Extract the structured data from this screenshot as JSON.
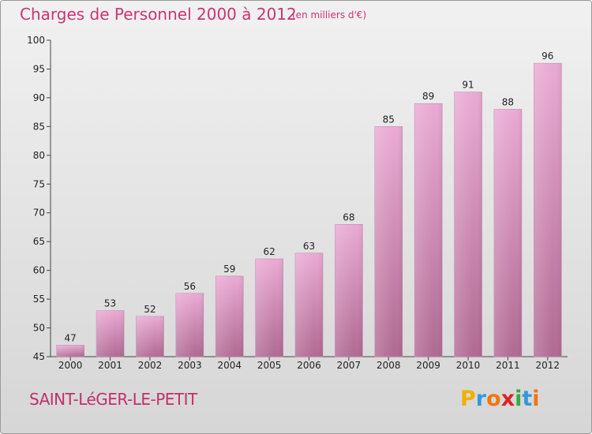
{
  "header": {
    "title": "Charges de Personnel 2000 à 2012",
    "unit": "(en milliers d'€)"
  },
  "footer": {
    "commune": "SAINT-LéGER-LE-PETIT",
    "brand_letters": [
      "P",
      "r",
      "o",
      "x",
      "i",
      "t",
      "i"
    ]
  },
  "colors": {
    "title": "#cc3377",
    "bar_light": "#eaaad4",
    "bar_dark": "#b06a92",
    "brand": [
      "#f0b000",
      "#3399dd",
      "#ee7711",
      "#dd2222",
      "#33aa44",
      "#3399dd",
      "#ee7711"
    ]
  },
  "chart_data": {
    "type": "bar",
    "categories": [
      "2000",
      "2001",
      "2002",
      "2003",
      "2004",
      "2005",
      "2006",
      "2007",
      "2008",
      "2009",
      "2010",
      "2011",
      "2012"
    ],
    "values": [
      47,
      53,
      52,
      56,
      59,
      62,
      63,
      68,
      85,
      89,
      91,
      88,
      96
    ],
    "data_labels": [
      "47",
      "53",
      "52",
      "56",
      "59",
      "62",
      "63",
      "68",
      "85",
      "89",
      "91",
      "88",
      "96"
    ],
    "title": "Charges de Personnel 2000 à 2012",
    "ylim": [
      45,
      100
    ],
    "yticks": [
      45,
      50,
      55,
      60,
      65,
      70,
      75,
      80,
      85,
      90,
      95,
      100
    ],
    "ytick_labels": [
      "45",
      "50",
      "55",
      "60",
      "65",
      "70",
      "75",
      "80",
      "85",
      "90",
      "95",
      "100"
    ],
    "grid": false,
    "legend": "none"
  }
}
